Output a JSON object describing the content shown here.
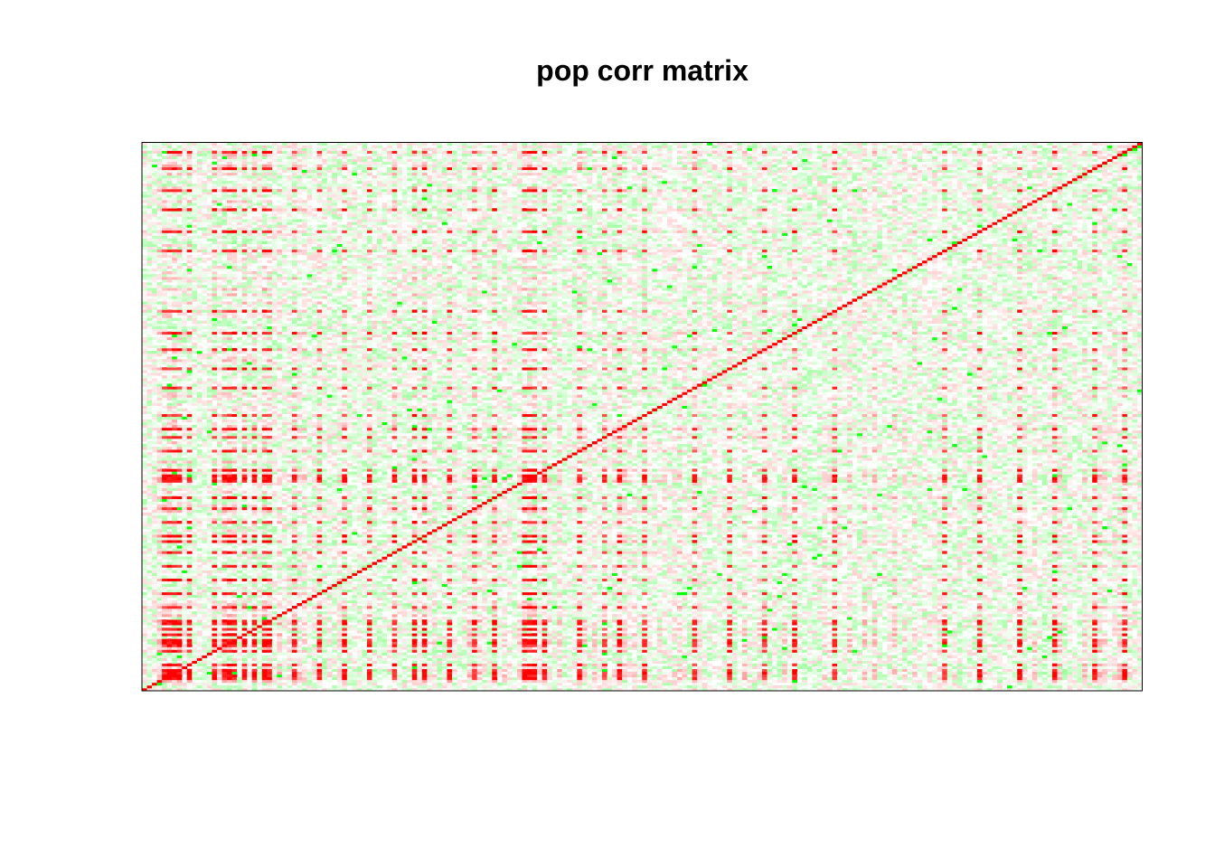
{
  "chart_data": {
    "type": "heatmap",
    "title": "pop corr matrix",
    "xlabel": "",
    "ylabel": "",
    "n_variables": 200,
    "value_range": [
      -1,
      1
    ],
    "color_scale": {
      "negative": "#00ff00",
      "zero": "#ffffff",
      "positive": "#ff0000"
    },
    "diagonal_value": 1,
    "strong_positive_variables": [
      4,
      5,
      9,
      14,
      16,
      17,
      20,
      22,
      25,
      30,
      35,
      40,
      45,
      50,
      56,
      61,
      66,
      70,
      76,
      80,
      87,
      92,
      95,
      100,
      110,
      117,
      124,
      130,
      138,
      160,
      167,
      175,
      182,
      190,
      196
    ],
    "block_variables": [
      6,
      7,
      17,
      18,
      24,
      25,
      54,
      56,
      76,
      77,
      78
    ],
    "axes_shown": false,
    "frame": true
  }
}
